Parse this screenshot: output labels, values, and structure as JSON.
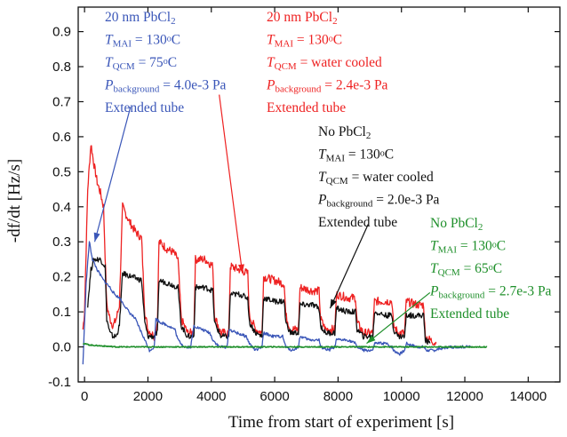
{
  "chart_data": {
    "type": "line",
    "xlabel": "Time from start of experiment [s]",
    "ylabel": "-df/dt [Hz/s]",
    "xlim": [
      -200,
      15000
    ],
    "ylim": [
      -0.1,
      0.97
    ],
    "x_ticks": [
      0,
      2000,
      4000,
      6000,
      8000,
      10000,
      12000,
      14000
    ],
    "y_ticks": [
      -0.1,
      0.0,
      0.1,
      0.2,
      0.3,
      0.4,
      0.5,
      0.6,
      0.7,
      0.8,
      0.9
    ],
    "grid": false,
    "legend": "none",
    "colors": {
      "red": "#ee2222",
      "black": "#111111",
      "blue": "#3a56b8",
      "green": "#1e8f2a"
    },
    "series": [
      {
        "color": "red",
        "points": [
          [
            -50,
            0.05
          ],
          [
            0,
            0.1
          ],
          [
            100,
            0.45
          ],
          [
            200,
            0.58
          ],
          [
            300,
            0.52
          ],
          [
            400,
            0.47
          ],
          [
            500,
            0.44
          ],
          [
            600,
            0.4
          ],
          [
            700,
            0.12
          ],
          [
            800,
            0.08
          ],
          [
            900,
            0.06
          ],
          [
            1000,
            0.08
          ],
          [
            1100,
            0.12
          ],
          [
            1200,
            0.4
          ],
          [
            1400,
            0.36
          ],
          [
            1600,
            0.33
          ],
          [
            1800,
            0.31
          ],
          [
            1900,
            0.1
          ],
          [
            2000,
            0.05
          ],
          [
            2200,
            0.03
          ],
          [
            2300,
            0.07
          ],
          [
            2350,
            0.3
          ],
          [
            2600,
            0.28
          ],
          [
            2800,
            0.27
          ],
          [
            2950,
            0.25
          ],
          [
            3050,
            0.08
          ],
          [
            3250,
            0.04
          ],
          [
            3450,
            0.04
          ],
          [
            3500,
            0.25
          ],
          [
            3800,
            0.25
          ],
          [
            4050,
            0.23
          ],
          [
            4100,
            0.09
          ],
          [
            4300,
            0.04
          ],
          [
            4550,
            0.04
          ],
          [
            4600,
            0.23
          ],
          [
            4900,
            0.22
          ],
          [
            5150,
            0.21
          ],
          [
            5200,
            0.09
          ],
          [
            5400,
            0.05
          ],
          [
            5600,
            0.04
          ],
          [
            5650,
            0.2
          ],
          [
            6000,
            0.19
          ],
          [
            6300,
            0.18
          ],
          [
            6350,
            0.09
          ],
          [
            6500,
            0.05
          ],
          [
            6750,
            0.05
          ],
          [
            6800,
            0.17
          ],
          [
            7200,
            0.16
          ],
          [
            7400,
            0.16
          ],
          [
            7450,
            0.08
          ],
          [
            7600,
            0.05
          ],
          [
            7900,
            0.05
          ],
          [
            7950,
            0.15
          ],
          [
            8300,
            0.14
          ],
          [
            8550,
            0.14
          ],
          [
            8600,
            0.07
          ],
          [
            8800,
            0.04
          ],
          [
            9100,
            0.04
          ],
          [
            9150,
            0.13
          ],
          [
            9500,
            0.13
          ],
          [
            9700,
            0.13
          ],
          [
            9750,
            0.06
          ],
          [
            9900,
            0.04
          ],
          [
            10100,
            0.04
          ],
          [
            10150,
            0.13
          ],
          [
            10500,
            0.12
          ],
          [
            10700,
            0.12
          ],
          [
            10750,
            0.03
          ],
          [
            10900,
            0.02
          ],
          [
            11100,
            0.01
          ]
        ]
      },
      {
        "color": "black",
        "points": [
          [
            100,
            0.12
          ],
          [
            200,
            0.22
          ],
          [
            300,
            0.25
          ],
          [
            500,
            0.25
          ],
          [
            650,
            0.23
          ],
          [
            700,
            0.08
          ],
          [
            800,
            0.04
          ],
          [
            900,
            0.03
          ],
          [
            1000,
            0.03
          ],
          [
            1100,
            0.06
          ],
          [
            1200,
            0.21
          ],
          [
            1500,
            0.2
          ],
          [
            1800,
            0.19
          ],
          [
            1900,
            0.07
          ],
          [
            2000,
            0.03
          ],
          [
            2200,
            0.03
          ],
          [
            2300,
            0.04
          ],
          [
            2350,
            0.19
          ],
          [
            2700,
            0.18
          ],
          [
            2950,
            0.17
          ],
          [
            3050,
            0.06
          ],
          [
            3250,
            0.03
          ],
          [
            3450,
            0.03
          ],
          [
            3500,
            0.17
          ],
          [
            3800,
            0.17
          ],
          [
            4050,
            0.16
          ],
          [
            4100,
            0.07
          ],
          [
            4300,
            0.03
          ],
          [
            4550,
            0.03
          ],
          [
            4600,
            0.15
          ],
          [
            4900,
            0.15
          ],
          [
            5150,
            0.14
          ],
          [
            5200,
            0.07
          ],
          [
            5400,
            0.04
          ],
          [
            5600,
            0.03
          ],
          [
            5650,
            0.14
          ],
          [
            6000,
            0.13
          ],
          [
            6300,
            0.13
          ],
          [
            6350,
            0.07
          ],
          [
            6500,
            0.04
          ],
          [
            6750,
            0.04
          ],
          [
            6800,
            0.12
          ],
          [
            7200,
            0.12
          ],
          [
            7400,
            0.11
          ],
          [
            7450,
            0.06
          ],
          [
            7600,
            0.04
          ],
          [
            7900,
            0.04
          ],
          [
            7950,
            0.11
          ],
          [
            8300,
            0.1
          ],
          [
            8550,
            0.1
          ],
          [
            8600,
            0.05
          ],
          [
            8800,
            0.03
          ],
          [
            9100,
            0.03
          ],
          [
            9150,
            0.1
          ],
          [
            9500,
            0.09
          ],
          [
            9700,
            0.09
          ],
          [
            9750,
            0.05
          ],
          [
            9900,
            0.03
          ],
          [
            10100,
            0.03
          ],
          [
            10150,
            0.09
          ],
          [
            10500,
            0.09
          ],
          [
            10700,
            0.09
          ],
          [
            10750,
            0.02
          ],
          [
            10900,
            0.01
          ]
        ]
      },
      {
        "color": "blue",
        "points": [
          [
            -50,
            -0.05
          ],
          [
            50,
            0.18
          ],
          [
            100,
            0.24
          ],
          [
            150,
            0.3
          ],
          [
            250,
            0.25
          ],
          [
            400,
            0.22
          ],
          [
            600,
            0.19
          ],
          [
            800,
            0.17
          ],
          [
            950,
            0.15
          ],
          [
            1100,
            0.14
          ],
          [
            1250,
            0.12
          ],
          [
            1400,
            0.1
          ],
          [
            1600,
            0.08
          ],
          [
            1800,
            0.04
          ],
          [
            1950,
            0.01
          ],
          [
            2050,
            -0.01
          ],
          [
            2200,
            0.0
          ],
          [
            2250,
            0.08
          ],
          [
            2400,
            0.07
          ],
          [
            2650,
            0.06
          ],
          [
            2850,
            0.05
          ],
          [
            2950,
            0.02
          ],
          [
            3150,
            0.0
          ],
          [
            3350,
            0.0
          ],
          [
            3450,
            0.06
          ],
          [
            3700,
            0.05
          ],
          [
            3950,
            0.04
          ],
          [
            4050,
            0.02
          ],
          [
            4250,
            0.0
          ],
          [
            4500,
            0.0
          ],
          [
            4550,
            0.05
          ],
          [
            4800,
            0.04
          ],
          [
            5100,
            0.03
          ],
          [
            5200,
            0.01
          ],
          [
            5400,
            -0.01
          ],
          [
            5600,
            0.0
          ],
          [
            5650,
            0.04
          ],
          [
            5950,
            0.03
          ],
          [
            6250,
            0.03
          ],
          [
            6350,
            0.0
          ],
          [
            6550,
            -0.01
          ],
          [
            6750,
            0.0
          ],
          [
            6800,
            0.03
          ],
          [
            7100,
            0.02
          ],
          [
            7400,
            0.02
          ],
          [
            7450,
            0.0
          ],
          [
            7700,
            -0.01
          ],
          [
            7900,
            0.0
          ],
          [
            7950,
            0.02
          ],
          [
            8300,
            0.02
          ],
          [
            8550,
            0.01
          ],
          [
            8600,
            0.0
          ],
          [
            8800,
            -0.01
          ],
          [
            9100,
            -0.01
          ],
          [
            9150,
            0.01
          ],
          [
            9500,
            0.01
          ],
          [
            9700,
            0.0
          ],
          [
            9750,
            -0.01
          ],
          [
            9950,
            -0.02
          ],
          [
            10100,
            -0.01
          ],
          [
            10150,
            0.01
          ],
          [
            10500,
            0.0
          ],
          [
            10700,
            0.0
          ],
          [
            10800,
            -0.01
          ],
          [
            11000,
            -0.01
          ],
          [
            11500,
            0.0
          ],
          [
            12000,
            0.0
          ],
          [
            12200,
            0.0
          ]
        ]
      },
      {
        "color": "green",
        "points": [
          [
            -50,
            0.01
          ],
          [
            200,
            0.005
          ],
          [
            1000,
            0.0
          ],
          [
            3000,
            0.0
          ],
          [
            6000,
            0.0
          ],
          [
            9000,
            0.0
          ],
          [
            12700,
            0.0
          ]
        ]
      }
    ],
    "annotations": [
      {
        "color": "blue",
        "lines": [
          "20 nm PbCl2",
          "TMAI = 130oC",
          "TQCM = 75oC",
          "Pbackground = 4.0e-3 Pa",
          "Extended tube"
        ],
        "arrow_from": [
          1450,
          0.685
        ],
        "arrow_to": [
          320,
          0.3
        ]
      },
      {
        "color": "red",
        "lines": [
          "20 nm PbCl2",
          "TMAI = 130oC",
          "TQCM = water cooled",
          "Pbackground = 2.4e-3 Pa",
          "Extended tube"
        ],
        "arrow_from": [
          4250,
          0.72
        ],
        "arrow_to": [
          4980,
          0.21
        ]
      },
      {
        "color": "black",
        "lines": [
          "No PbCl2",
          "TMAI = 130oC",
          "TQCM = water cooled",
          "Pbackground = 2.0e-3 Pa",
          "Extended tube"
        ],
        "arrow_from": [
          8950,
          0.35
        ],
        "arrow_to": [
          7750,
          0.11
        ]
      },
      {
        "color": "green",
        "lines": [
          "No PbCl2",
          "TMAI = 130oC",
          "TQCM = 65oC",
          "Pbackground = 2.7e-3 Pa",
          "Extended tube"
        ],
        "arrow_from": [
          10900,
          0.155
        ],
        "arrow_to": [
          8900,
          0.01
        ]
      }
    ]
  }
}
